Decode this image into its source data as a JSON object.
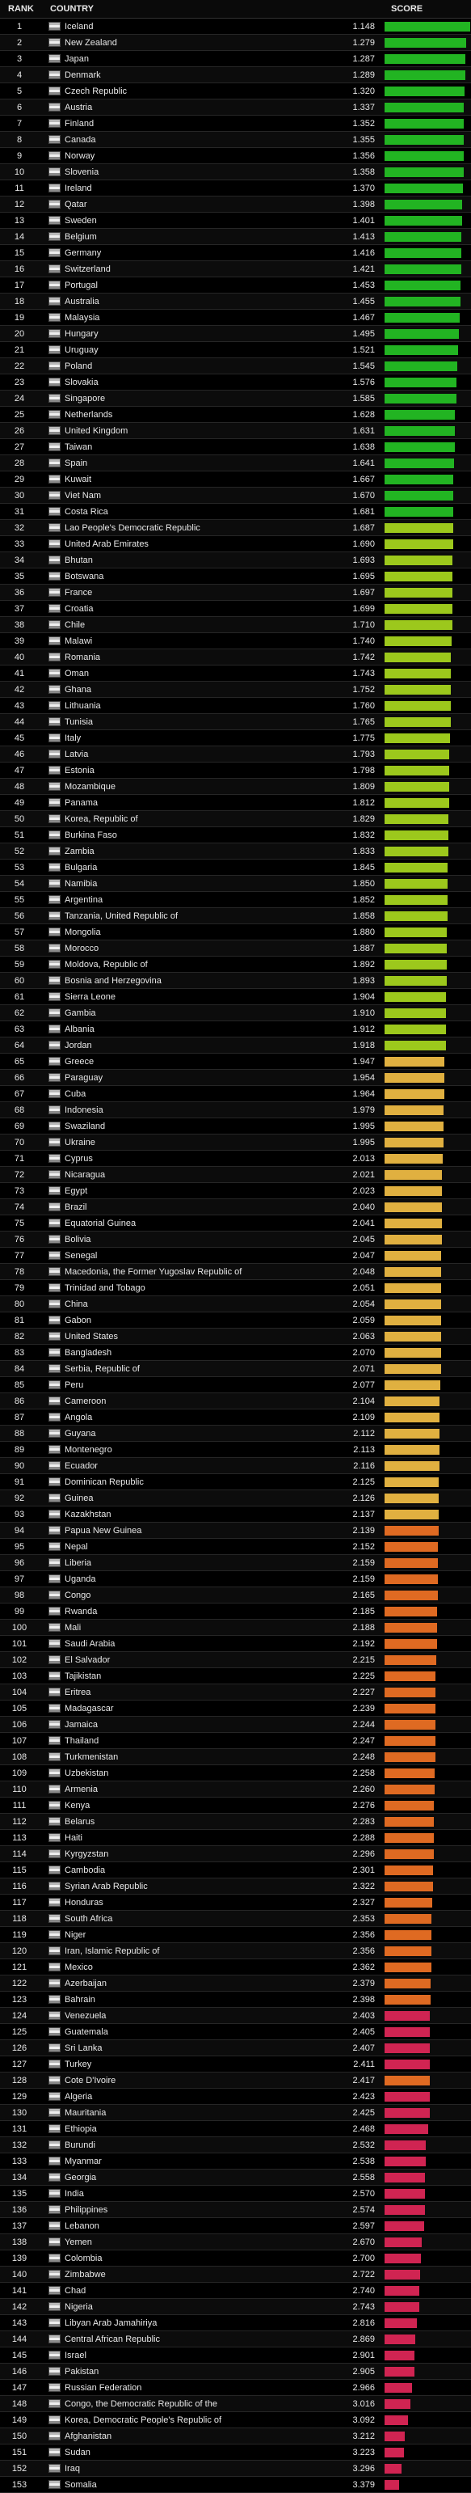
{
  "header": {
    "rank": "RANK",
    "country": "COUNTRY",
    "score": "SCORE"
  },
  "rows": [
    [
      1,
      "Iceland",
      "1.148",
      "#22b422"
    ],
    [
      2,
      "New Zealand",
      "1.279",
      "#22b422"
    ],
    [
      3,
      "Japan",
      "1.287",
      "#22b422"
    ],
    [
      4,
      "Denmark",
      "1.289",
      "#22b422"
    ],
    [
      5,
      "Czech Republic",
      "1.320",
      "#22b422"
    ],
    [
      6,
      "Austria",
      "1.337",
      "#22b422"
    ],
    [
      7,
      "Finland",
      "1.352",
      "#22b422"
    ],
    [
      8,
      "Canada",
      "1.355",
      "#22b422"
    ],
    [
      9,
      "Norway",
      "1.356",
      "#22b422"
    ],
    [
      10,
      "Slovenia",
      "1.358",
      "#22b422"
    ],
    [
      11,
      "Ireland",
      "1.370",
      "#22b422"
    ],
    [
      12,
      "Qatar",
      "1.398",
      "#22b422"
    ],
    [
      13,
      "Sweden",
      "1.401",
      "#22b422"
    ],
    [
      14,
      "Belgium",
      "1.413",
      "#22b422"
    ],
    [
      15,
      "Germany",
      "1.416",
      "#22b422"
    ],
    [
      16,
      "Switzerland",
      "1.421",
      "#22b422"
    ],
    [
      17,
      "Portugal",
      "1.453",
      "#22b422"
    ],
    [
      18,
      "Australia",
      "1.455",
      "#22b422"
    ],
    [
      19,
      "Malaysia",
      "1.467",
      "#22b422"
    ],
    [
      20,
      "Hungary",
      "1.495",
      "#22b422"
    ],
    [
      21,
      "Uruguay",
      "1.521",
      "#22b422"
    ],
    [
      22,
      "Poland",
      "1.545",
      "#22b422"
    ],
    [
      23,
      "Slovakia",
      "1.576",
      "#22b422"
    ],
    [
      24,
      "Singapore",
      "1.585",
      "#22b422"
    ],
    [
      25,
      "Netherlands",
      "1.628",
      "#22b422"
    ],
    [
      26,
      "United Kingdom",
      "1.631",
      "#22b422"
    ],
    [
      27,
      "Taiwan",
      "1.638",
      "#22b422"
    ],
    [
      28,
      "Spain",
      "1.641",
      "#22b422"
    ],
    [
      29,
      "Kuwait",
      "1.667",
      "#22b422"
    ],
    [
      30,
      "Viet Nam",
      "1.670",
      "#22b422"
    ],
    [
      31,
      "Costa Rica",
      "1.681",
      "#22b422"
    ],
    [
      32,
      "Lao People's Democratic Republic",
      "1.687",
      "#9cc81c"
    ],
    [
      33,
      "United Arab Emirates",
      "1.690",
      "#9cc81c"
    ],
    [
      34,
      "Bhutan",
      "1.693",
      "#9cc81c"
    ],
    [
      35,
      "Botswana",
      "1.695",
      "#9cc81c"
    ],
    [
      36,
      "France",
      "1.697",
      "#9cc81c"
    ],
    [
      37,
      "Croatia",
      "1.699",
      "#9cc81c"
    ],
    [
      38,
      "Chile",
      "1.710",
      "#9cc81c"
    ],
    [
      39,
      "Malawi",
      "1.740",
      "#9cc81c"
    ],
    [
      40,
      "Romania",
      "1.742",
      "#9cc81c"
    ],
    [
      41,
      "Oman",
      "1.743",
      "#9cc81c"
    ],
    [
      42,
      "Ghana",
      "1.752",
      "#9cc81c"
    ],
    [
      43,
      "Lithuania",
      "1.760",
      "#9cc81c"
    ],
    [
      44,
      "Tunisia",
      "1.765",
      "#9cc81c"
    ],
    [
      45,
      "Italy",
      "1.775",
      "#9cc81c"
    ],
    [
      46,
      "Latvia",
      "1.793",
      "#9cc81c"
    ],
    [
      47,
      "Estonia",
      "1.798",
      "#9cc81c"
    ],
    [
      48,
      "Mozambique",
      "1.809",
      "#9cc81c"
    ],
    [
      49,
      "Panama",
      "1.812",
      "#9cc81c"
    ],
    [
      50,
      "Korea, Republic of",
      "1.829",
      "#9cc81c"
    ],
    [
      51,
      "Burkina Faso",
      "1.832",
      "#9cc81c"
    ],
    [
      52,
      "Zambia",
      "1.833",
      "#9cc81c"
    ],
    [
      53,
      "Bulgaria",
      "1.845",
      "#9cc81c"
    ],
    [
      54,
      "Namibia",
      "1.850",
      "#9cc81c"
    ],
    [
      55,
      "Argentina",
      "1.852",
      "#9cc81c"
    ],
    [
      56,
      "Tanzania, United Republic of",
      "1.858",
      "#9cc81c"
    ],
    [
      57,
      "Mongolia",
      "1.880",
      "#9cc81c"
    ],
    [
      58,
      "Morocco",
      "1.887",
      "#9cc81c"
    ],
    [
      59,
      "Moldova, Republic of",
      "1.892",
      "#9cc81c"
    ],
    [
      60,
      "Bosnia and Herzegovina",
      "1.893",
      "#9cc81c"
    ],
    [
      61,
      "Sierra Leone",
      "1.904",
      "#9cc81c"
    ],
    [
      62,
      "Gambia",
      "1.910",
      "#9cc81c"
    ],
    [
      63,
      "Albania",
      "1.912",
      "#9cc81c"
    ],
    [
      64,
      "Jordan",
      "1.918",
      "#9cc81c"
    ],
    [
      65,
      "Greece",
      "1.947",
      "#e0b040"
    ],
    [
      66,
      "Paraguay",
      "1.954",
      "#e0b040"
    ],
    [
      67,
      "Cuba",
      "1.964",
      "#e0b040"
    ],
    [
      68,
      "Indonesia",
      "1.979",
      "#e0b040"
    ],
    [
      69,
      "Swaziland",
      "1.995",
      "#e0b040"
    ],
    [
      70,
      "Ukraine",
      "1.995",
      "#e0b040"
    ],
    [
      71,
      "Cyprus",
      "2.013",
      "#e0b040"
    ],
    [
      72,
      "Nicaragua",
      "2.021",
      "#e0b040"
    ],
    [
      73,
      "Egypt",
      "2.023",
      "#e0b040"
    ],
    [
      74,
      "Brazil",
      "2.040",
      "#e0b040"
    ],
    [
      75,
      "Equatorial Guinea",
      "2.041",
      "#e0b040"
    ],
    [
      76,
      "Bolivia",
      "2.045",
      "#e0b040"
    ],
    [
      77,
      "Senegal",
      "2.047",
      "#e0b040"
    ],
    [
      78,
      "Macedonia, the Former Yugoslav Republic of",
      "2.048",
      "#e0b040"
    ],
    [
      79,
      "Trinidad and Tobago",
      "2.051",
      "#e0b040"
    ],
    [
      80,
      "China",
      "2.054",
      "#e0b040"
    ],
    [
      81,
      "Gabon",
      "2.059",
      "#e0b040"
    ],
    [
      82,
      "United States",
      "2.063",
      "#e0b040"
    ],
    [
      83,
      "Bangladesh",
      "2.070",
      "#e0b040"
    ],
    [
      84,
      "Serbia, Republic of",
      "2.071",
      "#e0b040"
    ],
    [
      85,
      "Peru",
      "2.077",
      "#e0b040"
    ],
    [
      86,
      "Cameroon",
      "2.104",
      "#e0b040"
    ],
    [
      87,
      "Angola",
      "2.109",
      "#e0b040"
    ],
    [
      88,
      "Guyana",
      "2.112",
      "#e0b040"
    ],
    [
      89,
      "Montenegro",
      "2.113",
      "#e0b040"
    ],
    [
      90,
      "Ecuador",
      "2.116",
      "#e0b040"
    ],
    [
      91,
      "Dominican Republic",
      "2.125",
      "#e0b040"
    ],
    [
      92,
      "Guinea",
      "2.126",
      "#e0b040"
    ],
    [
      93,
      "Kazakhstan",
      "2.137",
      "#e0b040"
    ],
    [
      94,
      "Papua New Guinea",
      "2.139",
      "#df6a22"
    ],
    [
      95,
      "Nepal",
      "2.152",
      "#df6a22"
    ],
    [
      96,
      "Liberia",
      "2.159",
      "#df6a22"
    ],
    [
      97,
      "Uganda",
      "2.159",
      "#df6a22"
    ],
    [
      98,
      "Congo",
      "2.165",
      "#df6a22"
    ],
    [
      99,
      "Rwanda",
      "2.185",
      "#df6a22"
    ],
    [
      100,
      "Mali",
      "2.188",
      "#df6a22"
    ],
    [
      101,
      "Saudi Arabia",
      "2.192",
      "#df6a22"
    ],
    [
      102,
      "El Salvador",
      "2.215",
      "#df6a22"
    ],
    [
      103,
      "Tajikistan",
      "2.225",
      "#df6a22"
    ],
    [
      104,
      "Eritrea",
      "2.227",
      "#df6a22"
    ],
    [
      105,
      "Madagascar",
      "2.239",
      "#df6a22"
    ],
    [
      106,
      "Jamaica",
      "2.244",
      "#df6a22"
    ],
    [
      107,
      "Thailand",
      "2.247",
      "#df6a22"
    ],
    [
      108,
      "Turkmenistan",
      "2.248",
      "#df6a22"
    ],
    [
      109,
      "Uzbekistan",
      "2.258",
      "#df6a22"
    ],
    [
      110,
      "Armenia",
      "2.260",
      "#df6a22"
    ],
    [
      111,
      "Kenya",
      "2.276",
      "#df6a22"
    ],
    [
      112,
      "Belarus",
      "2.283",
      "#df6a22"
    ],
    [
      113,
      "Haiti",
      "2.288",
      "#df6a22"
    ],
    [
      114,
      "Kyrgyzstan",
      "2.296",
      "#df6a22"
    ],
    [
      115,
      "Cambodia",
      "2.301",
      "#df6a22"
    ],
    [
      116,
      "Syrian Arab Republic",
      "2.322",
      "#df6a22"
    ],
    [
      117,
      "Honduras",
      "2.327",
      "#df6a22"
    ],
    [
      118,
      "South Africa",
      "2.353",
      "#df6a22"
    ],
    [
      119,
      "Niger",
      "2.356",
      "#df6a22"
    ],
    [
      120,
      "Iran, Islamic Republic of",
      "2.356",
      "#df6a22"
    ],
    [
      121,
      "Mexico",
      "2.362",
      "#df6a22"
    ],
    [
      122,
      "Azerbaijan",
      "2.379",
      "#df6a22"
    ],
    [
      123,
      "Bahrain",
      "2.398",
      "#df6a22"
    ],
    [
      124,
      "Venezuela",
      "2.403",
      "#d02452"
    ],
    [
      125,
      "Guatemala",
      "2.405",
      "#d02452"
    ],
    [
      126,
      "Sri Lanka",
      "2.407",
      "#d02452"
    ],
    [
      127,
      "Turkey",
      "2.411",
      "#d02452"
    ],
    [
      128,
      "Cote D'Ivoire",
      "2.417",
      "#df6a22"
    ],
    [
      129,
      "Algeria",
      "2.423",
      "#d02452"
    ],
    [
      130,
      "Mauritania",
      "2.425",
      "#d02452"
    ],
    [
      131,
      "Ethiopia",
      "2.468",
      "#d02452"
    ],
    [
      132,
      "Burundi",
      "2.532",
      "#d02452"
    ],
    [
      133,
      "Myanmar",
      "2.538",
      "#d02452"
    ],
    [
      134,
      "Georgia",
      "2.558",
      "#d02452"
    ],
    [
      135,
      "India",
      "2.570",
      "#d02452"
    ],
    [
      136,
      "Philippines",
      "2.574",
      "#d02452"
    ],
    [
      137,
      "Lebanon",
      "2.597",
      "#d02452"
    ],
    [
      138,
      "Yemen",
      "2.670",
      "#d02452"
    ],
    [
      139,
      "Colombia",
      "2.700",
      "#d02452"
    ],
    [
      140,
      "Zimbabwe",
      "2.722",
      "#d02452"
    ],
    [
      141,
      "Chad",
      "2.740",
      "#d02452"
    ],
    [
      142,
      "Nigeria",
      "2.743",
      "#d02452"
    ],
    [
      143,
      "Libyan Arab Jamahiriya",
      "2.816",
      "#d02452"
    ],
    [
      144,
      "Central African Republic",
      "2.869",
      "#d02452"
    ],
    [
      145,
      "Israel",
      "2.901",
      "#d02452"
    ],
    [
      146,
      "Pakistan",
      "2.905",
      "#d02452"
    ],
    [
      147,
      "Russian Federation",
      "2.966",
      "#d02452"
    ],
    [
      148,
      "Congo, the Democratic Republic of the",
      "3.016",
      "#d02452"
    ],
    [
      149,
      "Korea, Democratic People's Republic of",
      "3.092",
      "#d02452"
    ],
    [
      150,
      "Afghanistan",
      "3.212",
      "#d02452"
    ],
    [
      151,
      "Sudan",
      "3.223",
      "#d02452"
    ],
    [
      152,
      "Iraq",
      "3.296",
      "#d02452"
    ],
    [
      153,
      "Somalia",
      "3.379",
      "#d02452"
    ]
  ]
}
